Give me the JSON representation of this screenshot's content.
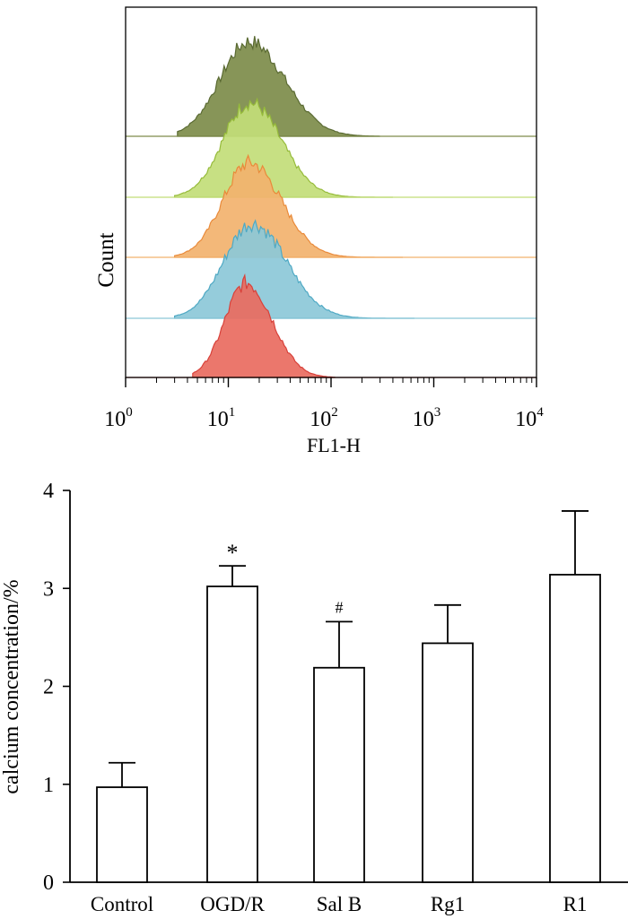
{
  "chart_data": [
    {
      "type": "area",
      "panel": "top",
      "xlabel": "FL1-H",
      "ylabel": "Count",
      "x_scale": "log",
      "xlim": [
        1,
        10000
      ],
      "xtick_labels": [
        {
          "base": "10",
          "exp": "0"
        },
        {
          "base": "10",
          "exp": "1"
        },
        {
          "base": "10",
          "exp": "2"
        },
        {
          "base": "10",
          "exp": "3"
        },
        {
          "base": "10",
          "exp": "4"
        }
      ],
      "series": [
        {
          "color": "#7d8c4a",
          "stroke": "#5a6a32",
          "peak_x": 16,
          "log_sd": 0.3,
          "start_x": 3.2,
          "end_x": 300
        },
        {
          "color": "#c2dd78",
          "stroke": "#96bb3a",
          "peak_x": 16,
          "log_sd": 0.27,
          "start_x": 3.0,
          "end_x": 400
        },
        {
          "color": "#f2b26e",
          "stroke": "#e98a3a",
          "peak_x": 16,
          "log_sd": 0.27,
          "start_x": 3.0,
          "end_x": 500
        },
        {
          "color": "#8cc8d8",
          "stroke": "#4fa9c4",
          "peak_x": 17,
          "log_sd": 0.29,
          "start_x": 3.0,
          "end_x": 650
        },
        {
          "color": "#e96b60",
          "stroke": "#d8413a",
          "peak_x": 15,
          "log_sd": 0.22,
          "start_x": 4.5,
          "end_x": 110
        }
      ]
    },
    {
      "type": "bar",
      "panel": "bottom",
      "categories": [
        "Control",
        "OGD/R",
        "Sal B",
        "Rg1",
        "R1"
      ],
      "values": [
        0.97,
        3.02,
        2.19,
        2.44,
        3.14
      ],
      "errors": [
        0.25,
        0.21,
        0.47,
        0.39,
        0.65
      ],
      "annotations": [
        "",
        "*",
        "#",
        "",
        ""
      ],
      "ylabel": "calcium concentration/%",
      "xlabel": "",
      "ylim": [
        0,
        4
      ],
      "yticks": [
        0,
        1,
        2,
        3,
        4
      ]
    }
  ]
}
